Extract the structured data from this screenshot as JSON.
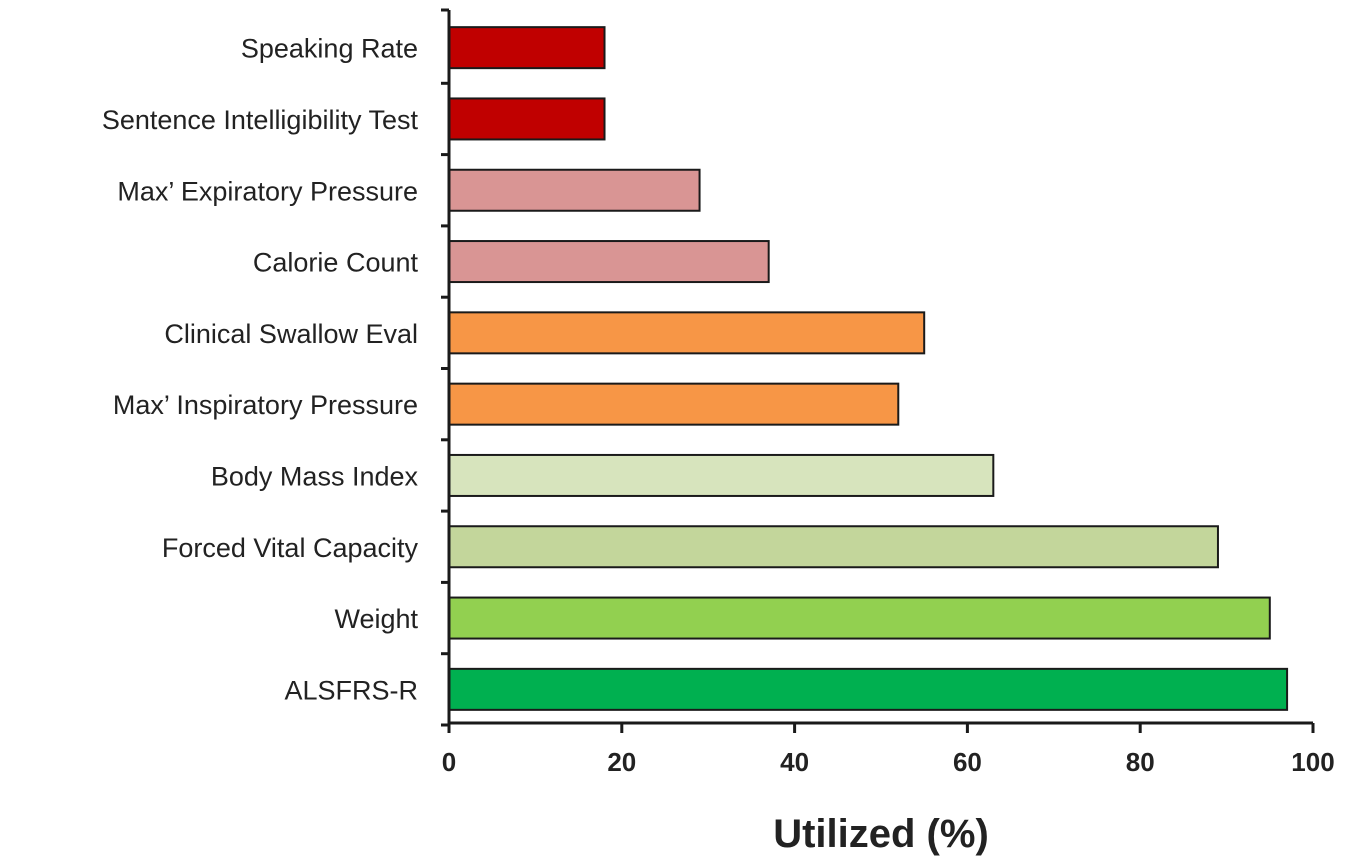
{
  "chart_data": {
    "type": "bar",
    "orientation": "horizontal",
    "categories": [
      "Speaking Rate",
      "Sentence Intelligibility Test",
      "Max’ Expiratory Pressure",
      "Calorie Count",
      "Clinical Swallow Eval",
      "Max’ Inspiratory Pressure",
      "Body Mass Index",
      "Forced Vital Capacity",
      "Weight",
      "ALSFRS-R"
    ],
    "values": [
      18,
      18,
      29,
      37,
      55,
      52,
      63,
      89,
      95,
      97
    ],
    "colors": [
      "#c00000",
      "#c00000",
      "#d99594",
      "#d99594",
      "#f79646",
      "#f79646",
      "#d7e4bd",
      "#c3d69b",
      "#92d050",
      "#00b050"
    ],
    "xlabel": "Utilized (%)",
    "ylabel": "",
    "xlim": [
      0,
      100
    ],
    "xticks": [
      0,
      20,
      40,
      60,
      80,
      100
    ],
    "grid": false,
    "legend": "none"
  }
}
